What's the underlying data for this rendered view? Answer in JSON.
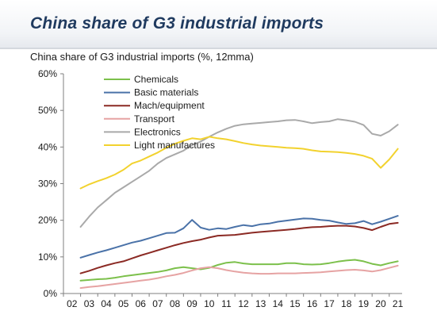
{
  "header": {
    "title": "China share of G3 industrial imports"
  },
  "chart_data": {
    "type": "line",
    "title": "China share of G3 industrial imports (%, 12mma)",
    "xlabel": "",
    "ylabel": "",
    "ylim": [
      0,
      60
    ],
    "yticks": [
      "0%",
      "10%",
      "20%",
      "30%",
      "40%",
      "50%",
      "60%"
    ],
    "x_ticks": [
      "02",
      "03",
      "04",
      "05",
      "06",
      "07",
      "08",
      "09",
      "10",
      "11",
      "12",
      "13",
      "14",
      "15",
      "16",
      "17",
      "18",
      "19",
      "20",
      "21"
    ],
    "x": [
      2003.0,
      2003.5,
      2004.0,
      2004.5,
      2005.0,
      2005.5,
      2006.0,
      2006.5,
      2007.0,
      2007.5,
      2008.0,
      2008.5,
      2009.0,
      2009.5,
      2010.0,
      2010.5,
      2011.0,
      2011.5,
      2012.0,
      2012.5,
      2013.0,
      2013.5,
      2014.0,
      2014.5,
      2015.0,
      2015.5,
      2016.0,
      2016.5,
      2017.0,
      2017.5,
      2018.0,
      2018.5,
      2019.0,
      2019.5,
      2020.0,
      2020.5,
      2021.0,
      2021.5
    ],
    "grid": false,
    "legend_position": "top-left",
    "series": [
      {
        "name": "Chemicals",
        "color": "#7cc04b",
        "values": [
          3.5,
          3.7,
          3.9,
          4.0,
          4.3,
          4.7,
          5.0,
          5.3,
          5.6,
          5.9,
          6.3,
          6.9,
          7.2,
          6.9,
          6.6,
          7.0,
          7.8,
          8.4,
          8.6,
          8.2,
          8.0,
          8.0,
          8.0,
          8.0,
          8.3,
          8.3,
          8.0,
          7.9,
          8.0,
          8.3,
          8.7,
          9.0,
          9.2,
          8.8,
          8.1,
          7.7,
          8.3,
          8.8
        ]
      },
      {
        "name": "Basic materials",
        "color": "#4a72a8",
        "values": [
          9.8,
          10.5,
          11.2,
          11.8,
          12.5,
          13.2,
          13.9,
          14.4,
          15.1,
          15.8,
          16.5,
          16.6,
          17.8,
          20.1,
          18.0,
          17.4,
          17.8,
          17.6,
          18.2,
          18.7,
          18.4,
          18.9,
          19.1,
          19.6,
          19.9,
          20.2,
          20.5,
          20.4,
          20.1,
          19.9,
          19.4,
          19.0,
          19.2,
          19.8,
          18.9,
          19.6,
          20.4,
          21.2
        ]
      },
      {
        "name": "Mach/equipment",
        "color": "#8b2a24",
        "values": [
          5.5,
          6.2,
          7.0,
          7.7,
          8.3,
          8.8,
          9.6,
          10.4,
          11.1,
          11.8,
          12.5,
          13.2,
          13.8,
          14.3,
          14.7,
          15.3,
          15.8,
          15.9,
          16.0,
          16.3,
          16.6,
          16.8,
          17.0,
          17.2,
          17.4,
          17.6,
          17.9,
          18.1,
          18.2,
          18.4,
          18.5,
          18.5,
          18.3,
          17.9,
          17.3,
          18.2,
          19.0,
          19.3
        ]
      },
      {
        "name": "Transport",
        "color": "#e6a3a3",
        "values": [
          1.5,
          1.8,
          2.0,
          2.3,
          2.6,
          2.9,
          3.2,
          3.5,
          3.8,
          4.2,
          4.7,
          5.1,
          5.6,
          6.3,
          6.9,
          7.2,
          6.9,
          6.4,
          6.0,
          5.7,
          5.5,
          5.4,
          5.4,
          5.5,
          5.5,
          5.5,
          5.6,
          5.7,
          5.8,
          6.0,
          6.2,
          6.4,
          6.5,
          6.3,
          6.0,
          6.4,
          7.0,
          7.6
        ]
      },
      {
        "name": "Electronics",
        "color": "#a9a9a9",
        "values": [
          18.2,
          21.0,
          23.5,
          25.5,
          27.5,
          29.0,
          30.5,
          32.0,
          33.5,
          35.5,
          37.0,
          38.0,
          39.0,
          40.5,
          41.5,
          42.8,
          44.0,
          45.0,
          45.8,
          46.2,
          46.4,
          46.6,
          46.8,
          47.0,
          47.3,
          47.4,
          47.0,
          46.5,
          46.8,
          47.0,
          47.6,
          47.3,
          46.9,
          46.0,
          43.6,
          43.1,
          44.3,
          46.1
        ]
      },
      {
        "name": "Light manufactures",
        "color": "#f2d22e",
        "values": [
          28.7,
          29.8,
          30.7,
          31.5,
          32.5,
          33.8,
          35.5,
          36.3,
          37.4,
          38.5,
          39.8,
          40.9,
          41.7,
          42.4,
          42.1,
          42.8,
          42.4,
          42.1,
          41.6,
          41.1,
          40.7,
          40.4,
          40.2,
          40.0,
          39.8,
          39.7,
          39.5,
          39.1,
          38.8,
          38.7,
          38.6,
          38.4,
          38.1,
          37.6,
          36.8,
          34.3,
          36.6,
          39.5
        ]
      }
    ]
  }
}
